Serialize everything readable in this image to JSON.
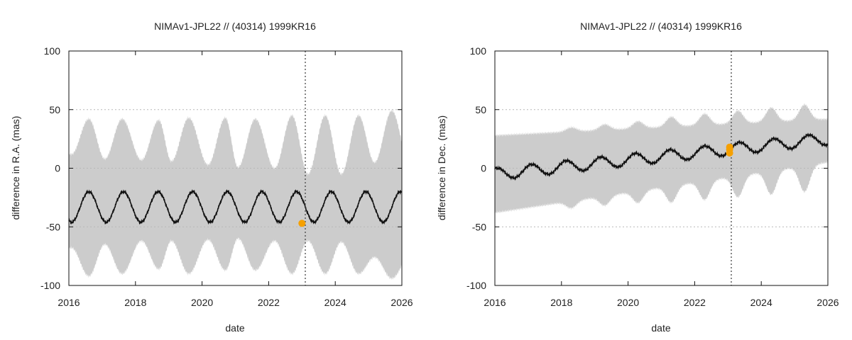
{
  "chart_data": [
    {
      "type": "line",
      "title": "NIMAv1-JPL22 // (40314) 1999KR16",
      "xlabel": "date",
      "ylabel": "difference in R.A. (mas)",
      "xlim": [
        2016,
        2026
      ],
      "ylim": [
        -100,
        100
      ],
      "xticks": [
        2016,
        2018,
        2020,
        2022,
        2024,
        2026
      ],
      "yticks": [
        -100,
        -50,
        0,
        50,
        100
      ],
      "grid": "horizontal dotted at y ticks",
      "vline_x": 2023.1,
      "marker": {
        "x": 2023.0,
        "y": -47,
        "color": "#f5a000"
      },
      "series": [
        {
          "kind": "line",
          "color": "#111111",
          "mean": -33,
          "amplitude": 13,
          "period": 1.04,
          "phase_peak_x": 2016.6
        },
        {
          "kind": "band",
          "color": "#cccccc",
          "mean": -33,
          "envelope_peaks_x": [
            2016.6,
            2017.6,
            2018.7,
            2019.6,
            2020.7,
            2021.6,
            2022.7,
            2023.7,
            2024.7,
            2025.7
          ],
          "upper_peaks": [
            42,
            42,
            41,
            43,
            43,
            42,
            45,
            45,
            45,
            49
          ],
          "upper_troughs": [
            12,
            8,
            7,
            6,
            3,
            1,
            0,
            -5,
            -5,
            5
          ],
          "lower_peaks": [
            -92,
            -90,
            -86,
            -90,
            -87,
            -87,
            -90,
            -90,
            -90,
            -94
          ],
          "lower_troughs": [
            -68,
            -65,
            -62,
            -62,
            -61,
            -60,
            -62,
            -62,
            -63,
            -76
          ]
        }
      ]
    },
    {
      "type": "line",
      "title": "NIMAv1-JPL22 // (40314) 1999KR16",
      "xlabel": "date",
      "ylabel": "difference in Dec. (mas)",
      "xlim": [
        2016,
        2026
      ],
      "ylim": [
        -100,
        100
      ],
      "xticks": [
        2016,
        2018,
        2020,
        2022,
        2024,
        2026
      ],
      "yticks": [
        -100,
        -50,
        0,
        50,
        100
      ],
      "grid": "horizontal dotted at y ticks",
      "vline_x": 2023.1,
      "marker": {
        "x": 2023.05,
        "y_values": [
          13,
          16,
          18
        ],
        "color": "#f5a000"
      },
      "series": [
        {
          "kind": "line",
          "color": "#111111",
          "start": -5,
          "end": 25,
          "amplitude": 5,
          "period": 1.04,
          "phase_peak_x": 2017.1
        },
        {
          "kind": "band",
          "color": "#cccccc",
          "upper_start": 28,
          "upper_end": 42,
          "lower_start": -38,
          "lower_end": 5,
          "bulge_x": [
            2018.3,
            2019.3,
            2020.3,
            2021.3,
            2022.3,
            2023.3,
            2024.3,
            2025.3
          ],
          "bulge_depth": [
            6,
            8,
            10,
            14,
            16,
            18,
            20,
            22
          ]
        }
      ]
    }
  ]
}
